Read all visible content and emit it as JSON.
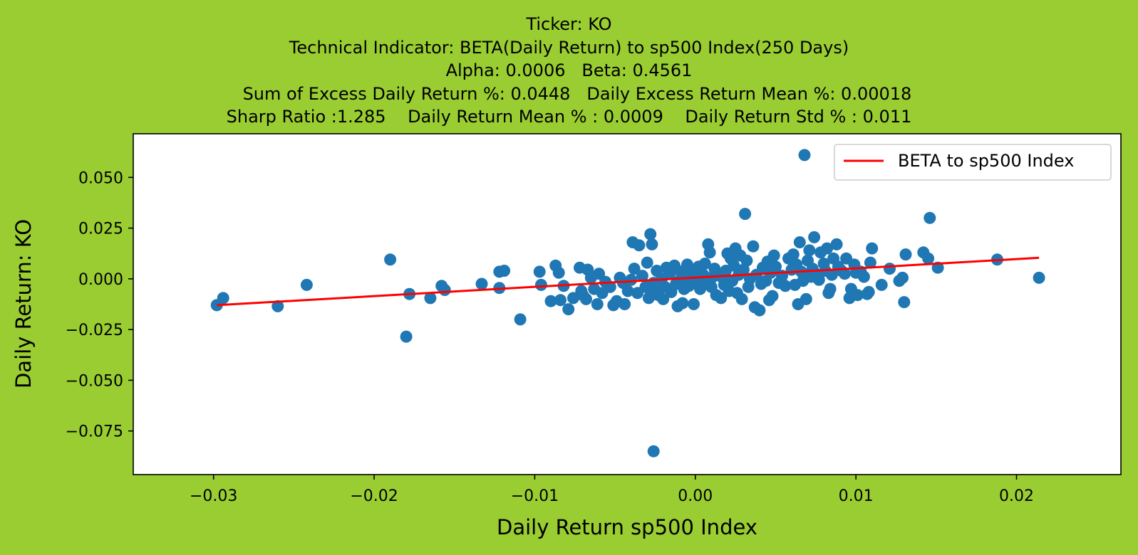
{
  "page": {
    "background": "#9acd32"
  },
  "title_lines": [
    "Ticker: KO",
    "Technical Indicator: BETA(Daily Return) to sp500 Index(250 Days)",
    "Alpha: 0.0006   Beta: 0.4561",
    "   Sum of Excess Daily Return %: 0.0448   Daily Excess Return Mean %: 0.00018",
    "Sharp Ratio :1.285    Daily Return Mean % : 0.0009    Daily Return Std % : 0.011"
  ],
  "chart_data": {
    "type": "scatter",
    "xlabel": "Daily Return sp500 Index",
    "ylabel": "Daily Return: KO",
    "xlim": [
      -0.035,
      0.0265
    ],
    "ylim": [
      -0.0965,
      0.0715
    ],
    "xticks": [
      -0.03,
      -0.02,
      -0.01,
      0.0,
      0.01,
      0.02
    ],
    "xtick_labels": [
      "−0.03",
      "−0.02",
      "−0.01",
      "0.00",
      "0.01",
      "0.02"
    ],
    "yticks": [
      0.05,
      0.025,
      0.0,
      -0.025,
      -0.05,
      -0.075
    ],
    "ytick_labels": [
      "0.050",
      "0.025",
      "0.000",
      "−0.025",
      "−0.050",
      "−0.075"
    ],
    "grid": false,
    "legend": {
      "position": "upper right",
      "entries": [
        {
          "label": "BETA to sp500 Index",
          "color": "#ff0000"
        }
      ]
    },
    "scatter_color": "#1f77b4",
    "line_color": "#ff0000",
    "regression": {
      "alpha": 0.0006,
      "beta": 0.4561,
      "x_range": [
        -0.0298,
        0.0214
      ]
    },
    "points": [
      [
        -0.0298,
        -0.013
      ],
      [
        -0.0294,
        -0.0095
      ],
      [
        -0.026,
        -0.0135
      ],
      [
        -0.0242,
        -0.003
      ],
      [
        -0.019,
        0.0095
      ],
      [
        -0.0178,
        -0.0075
      ],
      [
        -0.018,
        -0.0285
      ],
      [
        -0.0165,
        -0.0095
      ],
      [
        -0.0158,
        -0.0035
      ],
      [
        -0.0156,
        -0.0055
      ],
      [
        -0.0133,
        -0.0025
      ],
      [
        -0.0122,
        0.0035
      ],
      [
        -0.0119,
        0.004
      ],
      [
        -0.0122,
        -0.0045
      ],
      [
        -0.0109,
        -0.02
      ],
      [
        -0.0097,
        0.0035
      ],
      [
        -0.0096,
        -0.003
      ],
      [
        -0.009,
        -0.011
      ],
      [
        -0.0087,
        0.0065
      ],
      [
        -0.0085,
        0.003
      ],
      [
        -0.0084,
        -0.0105
      ],
      [
        -0.0082,
        -0.0035
      ],
      [
        -0.0079,
        -0.015
      ],
      [
        -0.0076,
        -0.0095
      ],
      [
        -0.0072,
        0.0055
      ],
      [
        -0.0071,
        -0.006
      ],
      [
        -0.007,
        -0.008
      ],
      [
        -0.0068,
        -0.01
      ],
      [
        -0.0067,
        0.0045
      ],
      [
        -0.0065,
        0.0005
      ],
      [
        -0.0063,
        -0.005
      ],
      [
        -0.0061,
        -0.0125
      ],
      [
        -0.006,
        0.0025
      ],
      [
        -0.0058,
        -0.007
      ],
      [
        -0.0056,
        -0.0015
      ],
      [
        -0.0053,
        -0.004
      ],
      [
        -0.0051,
        -0.013
      ],
      [
        -0.0049,
        -0.011
      ],
      [
        -0.0047,
        0.0005
      ],
      [
        -0.0045,
        -0.002
      ],
      [
        -0.0044,
        -0.0125
      ],
      [
        -0.0042,
        -0.006
      ],
      [
        -0.004,
        -0.0005
      ],
      [
        -0.0039,
        0.018
      ],
      [
        -0.0038,
        0.005
      ],
      [
        -0.0036,
        -0.007
      ],
      [
        -0.0035,
        0.0165
      ],
      [
        -0.0033,
        0.0015
      ],
      [
        -0.0031,
        -0.004
      ],
      [
        -0.003,
        0.008
      ],
      [
        -0.0029,
        -0.0095
      ],
      [
        -0.0028,
        0.022
      ],
      [
        -0.0027,
        0.017
      ],
      [
        -0.0026,
        -0.002
      ],
      [
        -0.0025,
        -0.006
      ],
      [
        -0.0026,
        -0.085
      ],
      [
        -0.0024,
        0.004
      ],
      [
        -0.0023,
        -0.008
      ],
      [
        -0.0021,
        0.0
      ],
      [
        -0.002,
        -0.01
      ],
      [
        -0.0019,
        -0.004
      ],
      [
        -0.0018,
        0.0055
      ],
      [
        -0.0016,
        0.0025
      ],
      [
        -0.0015,
        -0.0065
      ],
      [
        -0.0013,
        0.0065
      ],
      [
        -0.0012,
        -0.0025
      ],
      [
        -0.0011,
        -0.0135
      ],
      [
        -0.001,
        -0.001
      ],
      [
        -0.0009,
        0.0035
      ],
      [
        -0.0008,
        -0.012
      ],
      [
        -0.0007,
        -0.005
      ],
      [
        -0.0006,
        0.001
      ],
      [
        -0.0005,
        0.007
      ],
      [
        -0.0004,
        -0.0035
      ],
      [
        -0.0003,
        0.0045
      ],
      [
        -0.0002,
        0.0
      ],
      [
        -0.0001,
        -0.0125
      ],
      [
        0.0,
        0.003
      ],
      [
        0.0001,
        -0.002
      ],
      [
        0.0002,
        0.006
      ],
      [
        0.0003,
        -0.005
      ],
      [
        0.0005,
        0.002
      ],
      [
        0.0006,
        0.0075
      ],
      [
        0.0007,
        -0.0015
      ],
      [
        0.0008,
        0.017
      ],
      [
        0.0009,
        0.013
      ],
      [
        0.001,
        -0.004
      ],
      [
        0.0011,
        0.001
      ],
      [
        0.0012,
        0.005
      ],
      [
        0.0013,
        -0.008
      ],
      [
        0.0015,
        0.0025
      ],
      [
        0.0016,
        -0.0095
      ],
      [
        0.0017,
        0.0005
      ],
      [
        0.0018,
        -0.003
      ],
      [
        0.0019,
        0.004
      ],
      [
        0.002,
        0.0125
      ],
      [
        0.0021,
        -0.006
      ],
      [
        0.0022,
        0.01
      ],
      [
        0.0023,
        -0.001
      ],
      [
        0.0024,
        0.0065
      ],
      [
        0.0025,
        0.015
      ],
      [
        0.0026,
        -0.007
      ],
      [
        0.0027,
        0.002
      ],
      [
        0.0028,
        0.0115
      ],
      [
        0.0029,
        -0.01
      ],
      [
        0.003,
        0.0045
      ],
      [
        0.0031,
        0.032
      ],
      [
        0.0032,
        0.009
      ],
      [
        0.0033,
        -0.004
      ],
      [
        0.0034,
        0.0
      ],
      [
        0.0036,
        0.016
      ],
      [
        0.0037,
        -0.014
      ],
      [
        0.0038,
        0.002
      ],
      [
        0.004,
        -0.0155
      ],
      [
        0.0041,
        -0.0025
      ],
      [
        0.0042,
        0.0055
      ],
      [
        0.0044,
        -0.001
      ],
      [
        0.0045,
        0.0085
      ],
      [
        0.0046,
        -0.0105
      ],
      [
        0.0047,
        0.003
      ],
      [
        0.0048,
        -0.0085
      ],
      [
        0.0049,
        0.0115
      ],
      [
        0.005,
        0.006
      ],
      [
        0.0052,
        -0.002
      ],
      [
        0.0054,
        0.0015
      ],
      [
        0.0056,
        -0.0035
      ],
      [
        0.0058,
        0.01
      ],
      [
        0.006,
        0.0045
      ],
      [
        0.0061,
        0.012
      ],
      [
        0.0062,
        -0.003
      ],
      [
        0.0063,
        0.007
      ],
      [
        0.0064,
        -0.0125
      ],
      [
        0.0065,
        0.018
      ],
      [
        0.0066,
        0.0035
      ],
      [
        0.0067,
        -0.001
      ],
      [
        0.0068,
        0.061
      ],
      [
        0.0069,
        -0.01
      ],
      [
        0.007,
        0.009
      ],
      [
        0.0071,
        0.014
      ],
      [
        0.0072,
        0.001
      ],
      [
        0.0073,
        0.005
      ],
      [
        0.0074,
        0.0205
      ],
      [
        0.0075,
        0.0025
      ],
      [
        0.0077,
        -0.0005
      ],
      [
        0.0078,
        0.013
      ],
      [
        0.008,
        0.0075
      ],
      [
        0.0081,
        0.004
      ],
      [
        0.0082,
        0.015
      ],
      [
        0.0083,
        -0.007
      ],
      [
        0.0084,
        -0.005
      ],
      [
        0.0085,
        0.002
      ],
      [
        0.0086,
        0.01
      ],
      [
        0.0088,
        0.017
      ],
      [
        0.0089,
        0.006
      ],
      [
        0.0091,
        0.004
      ],
      [
        0.0093,
        0.0025
      ],
      [
        0.0094,
        0.01
      ],
      [
        0.0096,
        -0.0095
      ],
      [
        0.0097,
        -0.005
      ],
      [
        0.0099,
        0.007
      ],
      [
        0.01,
        0.003
      ],
      [
        0.0101,
        -0.008
      ],
      [
        0.0103,
        0.0035
      ],
      [
        0.0105,
        0.001
      ],
      [
        0.0107,
        -0.0075
      ],
      [
        0.0108,
        -0.0065
      ],
      [
        0.0109,
        0.008
      ],
      [
        0.011,
        0.015
      ],
      [
        0.0116,
        -0.003
      ],
      [
        0.0121,
        0.005
      ],
      [
        0.0127,
        -0.001
      ],
      [
        0.0129,
        0.0005
      ],
      [
        0.013,
        -0.0115
      ],
      [
        0.0131,
        0.012
      ],
      [
        0.0142,
        0.013
      ],
      [
        0.0145,
        0.01
      ],
      [
        0.0146,
        0.03
      ],
      [
        0.0151,
        0.0055
      ],
      [
        0.0188,
        0.0095
      ],
      [
        0.0214,
        0.0005
      ]
    ]
  }
}
